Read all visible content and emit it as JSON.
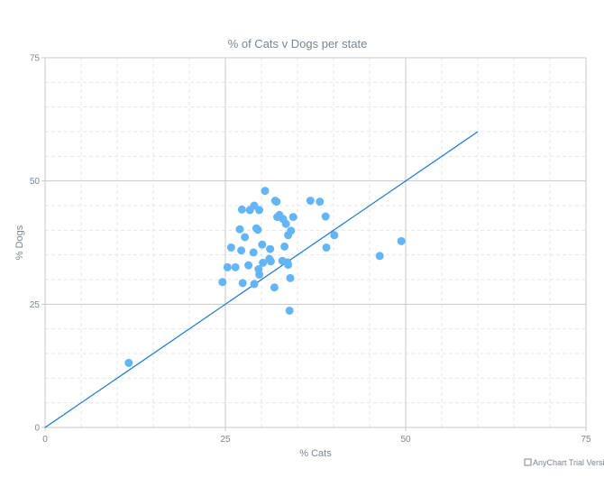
{
  "colors": {
    "point": "#64b5f6",
    "line": "#1976d2",
    "grid_major": "#c8c8c8",
    "grid_minor": "#e6e6e6",
    "axis": "#c8c8c8",
    "text": "#7c868e"
  },
  "credit": "AnyChart Trial Version",
  "chart_data": {
    "type": "scatter",
    "title": "% of Cats v Dogs per state",
    "xlabel": "% Cats",
    "ylabel": "% Dogs",
    "xlim": [
      0,
      75
    ],
    "ylim": [
      0,
      75
    ],
    "x_ticks": [
      0,
      25,
      50,
      75
    ],
    "y_ticks": [
      0,
      25,
      50,
      75
    ],
    "grid": true,
    "minor_grid": true,
    "points": [
      [
        11.6,
        13.1
      ],
      [
        24.6,
        29.5
      ],
      [
        25.3,
        32.5
      ],
      [
        25.8,
        36.5
      ],
      [
        26.4,
        32.5
      ],
      [
        27.0,
        40.2
      ],
      [
        27.2,
        35.9
      ],
      [
        27.3,
        44.2
      ],
      [
        27.4,
        29.3
      ],
      [
        27.7,
        38.6
      ],
      [
        28.2,
        32.9
      ],
      [
        28.4,
        44.1
      ],
      [
        28.9,
        35.5
      ],
      [
        29.0,
        45.0
      ],
      [
        29.0,
        29.1
      ],
      [
        29.3,
        40.4
      ],
      [
        29.5,
        40.1
      ],
      [
        29.6,
        32.1
      ],
      [
        29.7,
        44.1
      ],
      [
        29.7,
        31.0
      ],
      [
        30.1,
        37.1
      ],
      [
        30.2,
        33.4
      ],
      [
        30.5,
        48.0
      ],
      [
        31.1,
        34.2
      ],
      [
        31.2,
        36.2
      ],
      [
        31.3,
        33.7
      ],
      [
        31.8,
        28.4
      ],
      [
        31.9,
        46.0
      ],
      [
        32.1,
        45.8
      ],
      [
        32.2,
        42.7
      ],
      [
        32.5,
        43.1
      ],
      [
        32.9,
        33.8
      ],
      [
        33.0,
        42.3
      ],
      [
        33.2,
        36.7
      ],
      [
        33.4,
        41.3
      ],
      [
        33.6,
        33.5
      ],
      [
        33.7,
        33.0
      ],
      [
        33.7,
        39.0
      ],
      [
        33.9,
        23.7
      ],
      [
        34.0,
        30.3
      ],
      [
        34.1,
        39.9
      ],
      [
        34.4,
        42.7
      ],
      [
        36.8,
        46.0
      ],
      [
        38.1,
        45.8
      ],
      [
        38.9,
        42.8
      ],
      [
        39.0,
        36.5
      ],
      [
        40.1,
        39.0
      ],
      [
        46.4,
        34.8
      ],
      [
        49.4,
        37.8
      ]
    ],
    "series": [
      {
        "type": "scatter",
        "values_ref": "points"
      },
      {
        "type": "line",
        "x": [
          0,
          60
        ],
        "y": [
          0,
          60
        ]
      }
    ]
  }
}
